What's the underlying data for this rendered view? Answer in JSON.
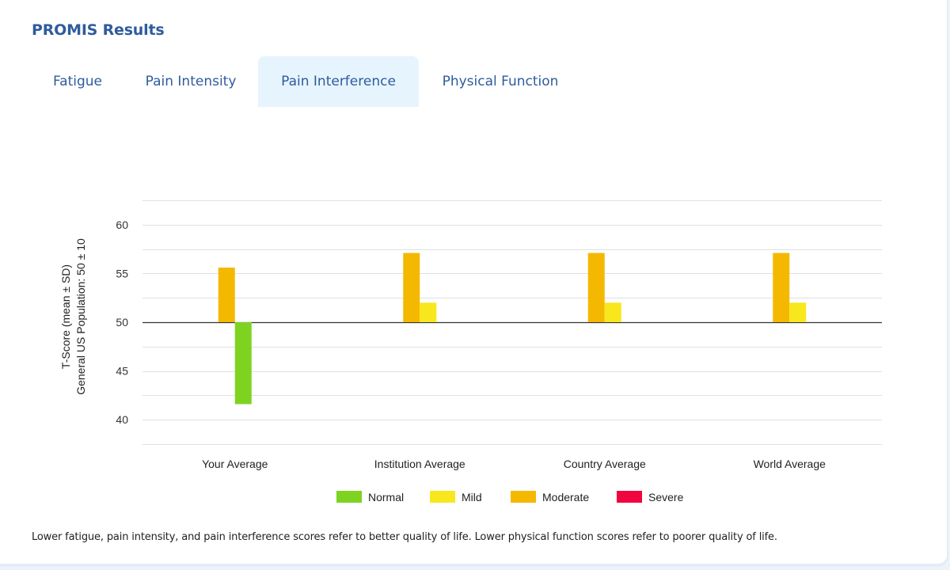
{
  "header": {
    "title": "PROMIS Results"
  },
  "tabs": [
    {
      "label": "Fatigue",
      "active": false
    },
    {
      "label": "Pain Intensity",
      "active": false
    },
    {
      "label": "Pain Interference",
      "active": true
    },
    {
      "label": "Physical Function",
      "active": false
    }
  ],
  "chart_data": {
    "type": "bar",
    "ylabel": [
      "T-Score (mean ± SD)",
      "General US Population: 50 ± 10"
    ],
    "ylim": [
      62.5,
      37.5
    ],
    "y_inverted": true,
    "baseline": 50,
    "yticks": [
      40,
      45,
      50,
      55,
      60
    ],
    "grid": true,
    "legend_position": "bottom",
    "categories": [
      "Your Average",
      "Institution Average",
      "Country Average",
      "World Average"
    ],
    "bars": [
      {
        "category": "Your Average",
        "series": "Moderate",
        "value": 55.6
      },
      {
        "category": "Your Average",
        "series": "Normal",
        "value": 41.6
      },
      {
        "category": "Institution Average",
        "series": "Moderate",
        "value": 57.1
      },
      {
        "category": "Institution Average",
        "series": "Mild",
        "value": 52.0
      },
      {
        "category": "Country Average",
        "series": "Moderate",
        "value": 57.1
      },
      {
        "category": "Country Average",
        "series": "Mild",
        "value": 52.0
      },
      {
        "category": "World Average",
        "series": "Moderate",
        "value": 57.1
      },
      {
        "category": "World Average",
        "series": "Mild",
        "value": 52.0
      }
    ],
    "legend": [
      {
        "name": "Normal",
        "color": "#7ed321"
      },
      {
        "name": "Mild",
        "color": "#f8e71c"
      },
      {
        "name": "Moderate",
        "color": "#f5b800"
      },
      {
        "name": "Severe",
        "color": "#f0053f"
      }
    ]
  },
  "footnote": "Lower fatigue, pain intensity, and pain interference scores refer to better quality of life. Lower physical function scores refer to poorer quality of life."
}
